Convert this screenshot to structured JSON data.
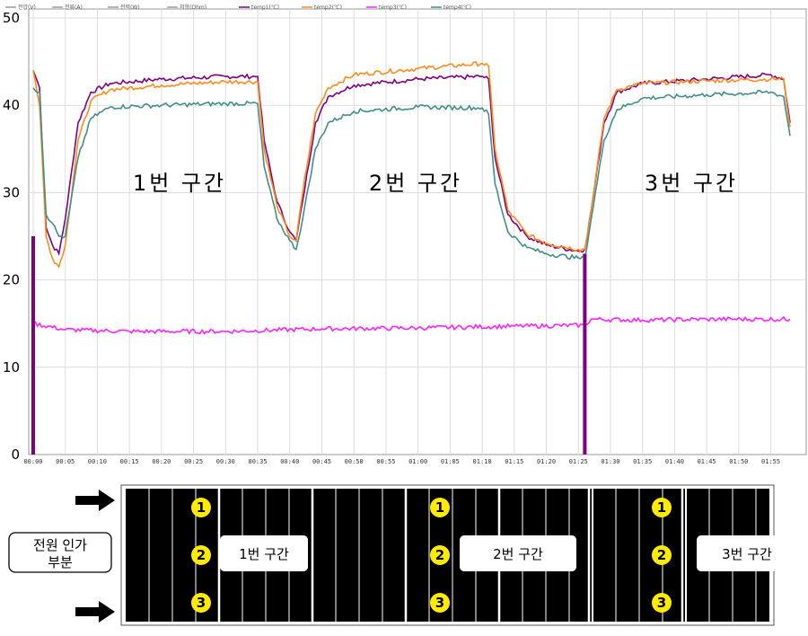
{
  "chart_data": {
    "type": "line",
    "title": "",
    "xlabel": "",
    "ylabel": "",
    "ylim": [
      0,
      50
    ],
    "yticks": [
      "0",
      "10",
      "20",
      "30",
      "40",
      "50"
    ],
    "xlim": [
      "00:00",
      "01:58"
    ],
    "xticks": [
      "00:00",
      "00:05",
      "00:10",
      "00:15",
      "00:20",
      "00:25",
      "00:30",
      "00:35",
      "00:40",
      "00:45",
      "00:50",
      "00:55",
      "01:00",
      "01:05",
      "01:10",
      "01:15",
      "01:20",
      "01:25",
      "01:30",
      "01:35",
      "01:40",
      "01:45",
      "01:50",
      "01:55"
    ],
    "grid": true,
    "legend_position": "top-left",
    "legend": [
      "전압(V)",
      "전류(A)",
      "전력(W)",
      "저항(Ohm)",
      "temp1(℃)",
      "temp2(℃)",
      "temp3(℃)",
      "temp4(℃)"
    ],
    "legend_colors": [
      "#9a9a9a",
      "#9a9a9a",
      "#9a9a9a",
      "#9a9a9a",
      "#800080",
      "#ff8c1a",
      "#ff22ff",
      "#3f8f8a"
    ],
    "zone_labels": [
      "1번 구간",
      "2번 구간",
      "3번 구간"
    ],
    "series": [
      {
        "name": "temp1(℃)",
        "color": "#800080",
        "points": [
          [
            "00:00",
            44.0
          ],
          [
            "00:01",
            42.0
          ],
          [
            "00:02",
            26.0
          ],
          [
            "00:03",
            24.0
          ],
          [
            "00:04",
            23.0
          ],
          [
            "00:05",
            27.0
          ],
          [
            "00:07",
            38.0
          ],
          [
            "00:09",
            41.5
          ],
          [
            "00:12",
            42.5
          ],
          [
            "00:20",
            43.0
          ],
          [
            "00:30",
            43.3
          ],
          [
            "00:35",
            43.3
          ],
          [
            "00:36",
            36.0
          ],
          [
            "00:38",
            29.0
          ],
          [
            "00:40",
            25.5
          ],
          [
            "00:41",
            24.5
          ],
          [
            "00:42",
            29.0
          ],
          [
            "00:44",
            38.0
          ],
          [
            "00:46",
            41.0
          ],
          [
            "00:50",
            42.3
          ],
          [
            "00:60",
            43.0
          ],
          [
            "01:10",
            43.3
          ],
          [
            "01:11",
            43.0
          ],
          [
            "01:12",
            34.0
          ],
          [
            "01:14",
            27.5
          ],
          [
            "01:17",
            25.0
          ],
          [
            "01:20",
            24.0
          ],
          [
            "01:25",
            23.3
          ],
          [
            "01:26",
            23.5
          ],
          [
            "01:27",
            28.0
          ],
          [
            "01:29",
            38.0
          ],
          [
            "01:31",
            41.5
          ],
          [
            "01:35",
            42.5
          ],
          [
            "01:45",
            43.0
          ],
          [
            "01:55",
            43.5
          ],
          [
            "01:57",
            43.0
          ],
          [
            "01:58",
            38.0
          ]
        ]
      },
      {
        "name": "temp2(℃)",
        "color": "#ff8c1a",
        "points": [
          [
            "00:00",
            44.0
          ],
          [
            "00:01",
            40.0
          ],
          [
            "00:02",
            25.0
          ],
          [
            "00:03",
            22.5
          ],
          [
            "00:04",
            21.5
          ],
          [
            "00:05",
            24.0
          ],
          [
            "00:07",
            36.0
          ],
          [
            "00:09",
            40.5
          ],
          [
            "00:12",
            41.8
          ],
          [
            "00:20",
            42.3
          ],
          [
            "00:30",
            42.7
          ],
          [
            "00:35",
            42.7
          ],
          [
            "00:36",
            35.0
          ],
          [
            "00:38",
            28.5
          ],
          [
            "00:40",
            25.0
          ],
          [
            "00:41",
            24.5
          ],
          [
            "00:42",
            30.0
          ],
          [
            "00:44",
            39.0
          ],
          [
            "00:46",
            42.0
          ],
          [
            "00:50",
            43.5
          ],
          [
            "00:60",
            44.2
          ],
          [
            "01:10",
            44.8
          ],
          [
            "01:11",
            44.5
          ],
          [
            "01:12",
            35.0
          ],
          [
            "01:14",
            28.0
          ],
          [
            "01:17",
            25.2
          ],
          [
            "01:20",
            24.2
          ],
          [
            "01:25",
            23.5
          ],
          [
            "01:26",
            23.5
          ],
          [
            "01:27",
            28.0
          ],
          [
            "01:29",
            38.5
          ],
          [
            "01:31",
            41.8
          ],
          [
            "01:35",
            42.5
          ],
          [
            "01:45",
            42.8
          ],
          [
            "01:55",
            43.0
          ],
          [
            "01:57",
            43.0
          ],
          [
            "01:58",
            37.5
          ]
        ]
      },
      {
        "name": "temp3(℃)",
        "color": "#ff22ff",
        "points": [
          [
            "00:00",
            15.0
          ],
          [
            "00:05",
            14.3
          ],
          [
            "00:15",
            14.1
          ],
          [
            "00:30",
            14.1
          ],
          [
            "00:45",
            14.4
          ],
          [
            "01:00",
            14.5
          ],
          [
            "01:15",
            14.7
          ],
          [
            "01:26",
            14.8
          ],
          [
            "01:27",
            15.5
          ],
          [
            "01:35",
            15.4
          ],
          [
            "01:45",
            15.5
          ],
          [
            "01:58",
            15.5
          ]
        ]
      },
      {
        "name": "temp4(℃)",
        "color": "#3f8f8a",
        "points": [
          [
            "00:00",
            42.0
          ],
          [
            "00:01",
            41.5
          ],
          [
            "00:02",
            27.5
          ],
          [
            "00:03",
            26.5
          ],
          [
            "00:04",
            25.0
          ],
          [
            "00:05",
            25.0
          ],
          [
            "00:07",
            34.0
          ],
          [
            "00:09",
            38.5
          ],
          [
            "00:12",
            39.8
          ],
          [
            "00:20",
            40.0
          ],
          [
            "00:30",
            40.2
          ],
          [
            "00:35",
            40.2
          ],
          [
            "00:36",
            33.0
          ],
          [
            "00:38",
            27.0
          ],
          [
            "00:40",
            24.5
          ],
          [
            "00:41",
            23.5
          ],
          [
            "00:42",
            27.0
          ],
          [
            "00:44",
            35.0
          ],
          [
            "00:46",
            38.0
          ],
          [
            "00:50",
            39.3
          ],
          [
            "00:60",
            39.8
          ],
          [
            "01:10",
            39.7
          ],
          [
            "01:11",
            39.0
          ],
          [
            "01:12",
            31.0
          ],
          [
            "01:14",
            25.5
          ],
          [
            "01:17",
            23.7
          ],
          [
            "01:20",
            23.0
          ],
          [
            "01:25",
            22.5
          ],
          [
            "01:26",
            22.5
          ],
          [
            "01:27",
            27.0
          ],
          [
            "01:29",
            36.0
          ],
          [
            "01:31",
            39.5
          ],
          [
            "01:35",
            40.8
          ],
          [
            "01:45",
            41.2
          ],
          [
            "01:55",
            41.5
          ],
          [
            "01:57",
            41.0
          ],
          [
            "01:58",
            36.5
          ]
        ]
      }
    ],
    "power_markers": [
      {
        "time": "00:00",
        "value": 25.0,
        "color": "#800080"
      },
      {
        "time": "01:26",
        "value": 23.0,
        "color": "#800080"
      }
    ]
  },
  "diagram": {
    "left_label_line1": "전원 인가",
    "left_label_line2": "부분",
    "section_labels": [
      "1번 구간",
      "2번 구간",
      "3번 구간"
    ],
    "markers": [
      "1",
      "2",
      "3"
    ],
    "marker_color": "#ffeb00",
    "panel_color": "#000000"
  }
}
